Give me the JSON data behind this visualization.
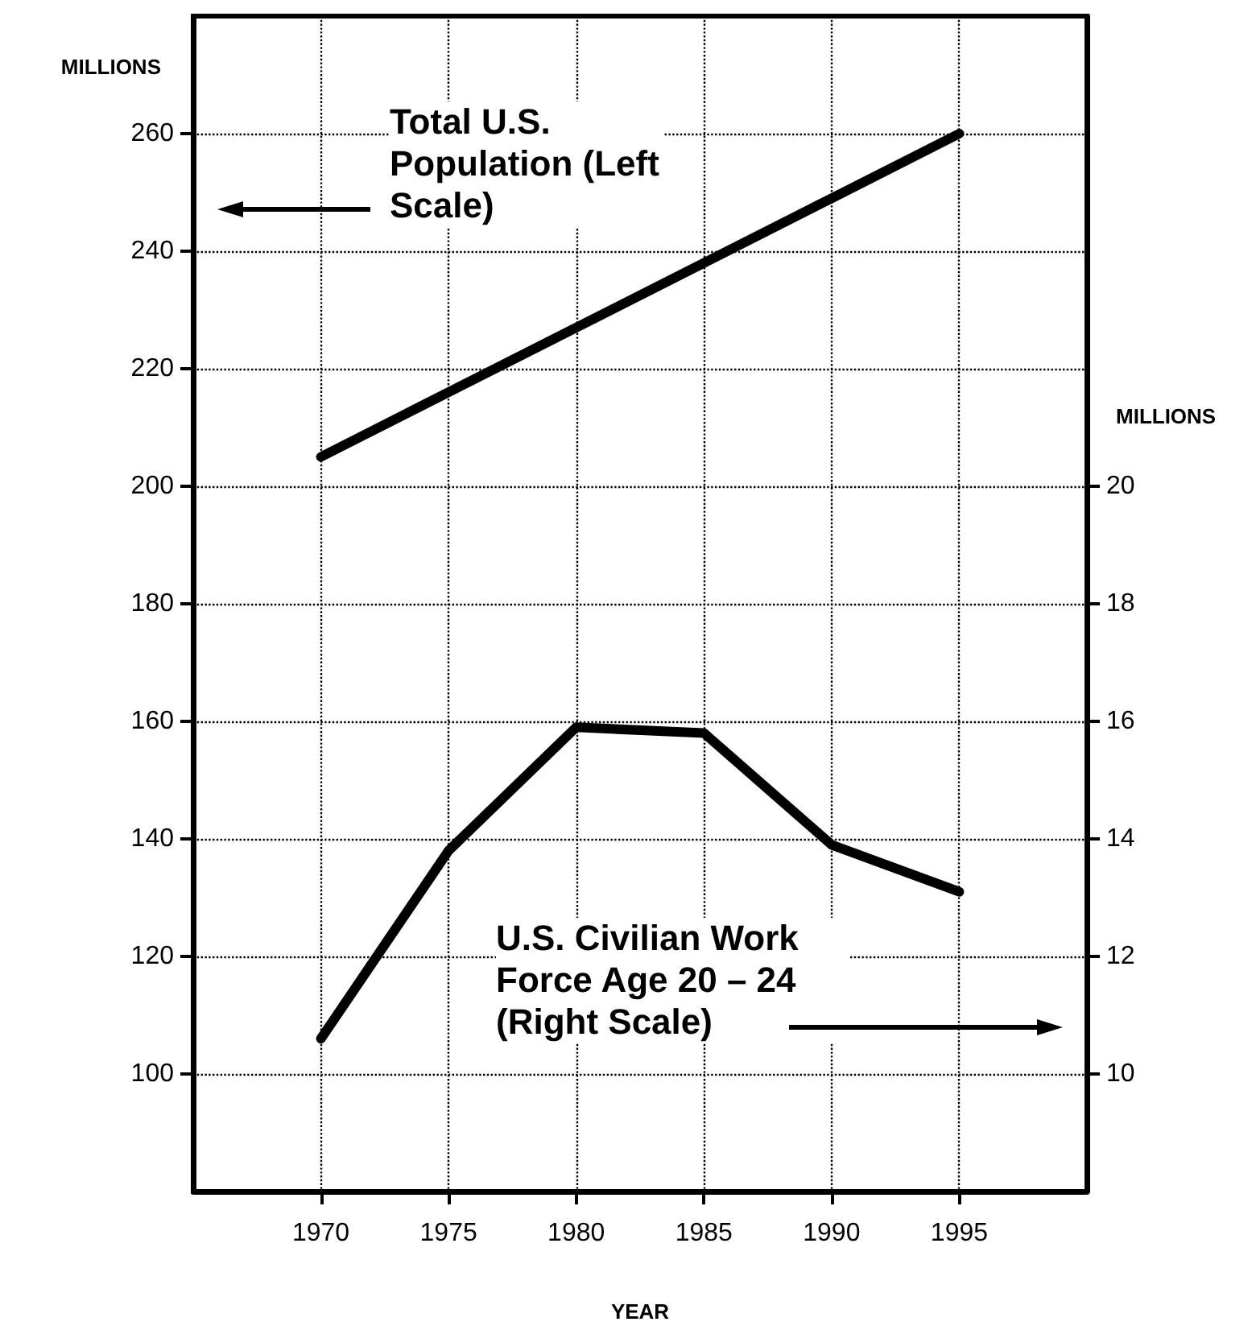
{
  "chart_data": {
    "type": "line",
    "xlabel": "YEAR",
    "ylabel": "MILLIONS",
    "y2label": "MILLIONS",
    "x": [
      1970,
      1975,
      1980,
      1985,
      1990,
      1995
    ],
    "series": [
      {
        "name": "Total U.S. Population (Left Scale)",
        "color": "#000000",
        "values": [
          205,
          216,
          227,
          238,
          249,
          260
        ]
      },
      {
        "name": "U.S. Civilian Work Force Age 20 – 24 (Right Scale)",
        "color": "#000000",
        "axis": "y2",
        "values": [
          10.6,
          13.8,
          15.9,
          15.8,
          13.9,
          13.1
        ]
      }
    ],
    "xlim": [
      1965,
      2000
    ],
    "xticks": [
      1970,
      1975,
      1980,
      1985,
      1990,
      1995
    ],
    "ylim": [
      80,
      280
    ],
    "yticks": [
      100,
      120,
      140,
      160,
      180,
      200,
      220,
      240,
      260
    ],
    "y2lim": [
      8,
      28
    ],
    "y2ticks": [
      10,
      12,
      14,
      16,
      18,
      20
    ],
    "grid": true,
    "legend": false,
    "marker": "none",
    "line_style": "solid"
  }
}
